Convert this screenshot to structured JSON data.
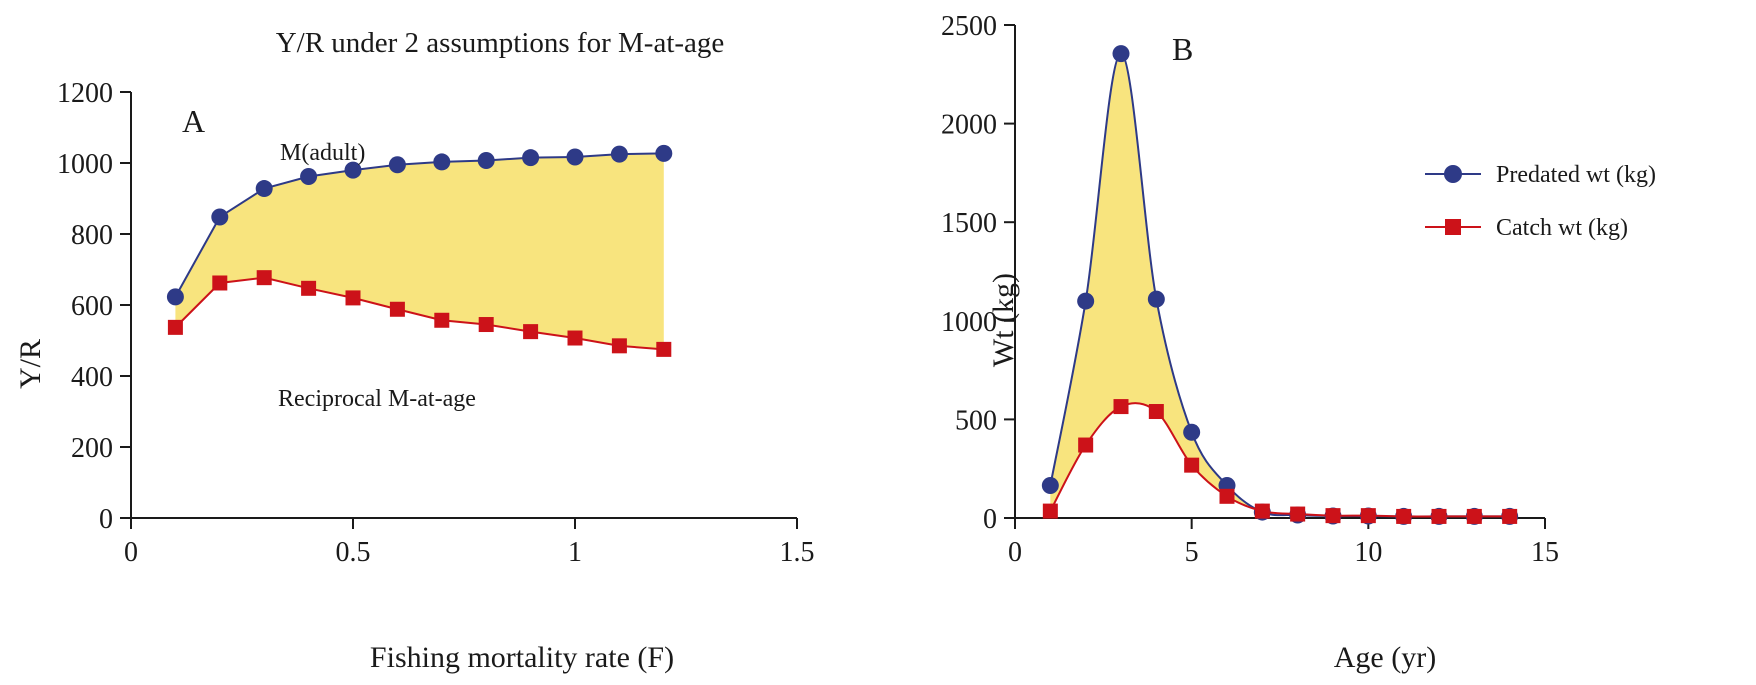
{
  "colors": {
    "fill": "#f8e47e",
    "predated": "#2e3a87",
    "catch": "#cc1219",
    "axis": "#1a1a1a"
  },
  "chart_data": [
    {
      "type": "line",
      "panel_label": "A",
      "title": "Y/R under 2 assumptions for M-at-age",
      "xlabel": "Fishing mortality rate (F)",
      "ylabel": "Y/R",
      "xlim": [
        0,
        1.5
      ],
      "ylim": [
        0,
        1200
      ],
      "xticks": [
        0,
        0.5,
        1,
        1.5
      ],
      "xtick_labels": [
        "0",
        "0.5",
        "1",
        "1.5"
      ],
      "yticks": [
        0,
        200,
        400,
        600,
        800,
        1000,
        1200
      ],
      "ytick_labels": [
        "0",
        "200",
        "400",
        "600",
        "800",
        "1000",
        "1200"
      ],
      "x": [
        0.1,
        0.2,
        0.3,
        0.4,
        0.5,
        0.6,
        0.7,
        0.8,
        0.9,
        1.0,
        1.1,
        1.2
      ],
      "series": [
        {
          "name": "M(adult)",
          "marker": "circle",
          "values": [
            623,
            848,
            928,
            962,
            980,
            995,
            1003,
            1007,
            1015,
            1017,
            1025,
            1027
          ]
        },
        {
          "name": "Reciprocal M-at-age",
          "marker": "square",
          "values": [
            537,
            662,
            677,
            647,
            620,
            588,
            557,
            545,
            525,
            507,
            485,
            475
          ]
        }
      ],
      "fill_between": true,
      "legend": "none",
      "grid": false
    },
    {
      "type": "line",
      "panel_label": "B",
      "title": "",
      "xlabel": "Age (yr)",
      "ylabel": "Wt (kg)",
      "xlim": [
        0,
        15
      ],
      "ylim": [
        0,
        2500
      ],
      "xticks": [
        0,
        5,
        10,
        15
      ],
      "xtick_labels": [
        "0",
        "5",
        "10",
        "15"
      ],
      "yticks": [
        0,
        500,
        1000,
        1500,
        2000,
        2500
      ],
      "ytick_labels": [
        "0",
        "500",
        "1000",
        "1500",
        "2000",
        "2500"
      ],
      "x": [
        1,
        2,
        3,
        4,
        5,
        6,
        7,
        8,
        9,
        10,
        11,
        12,
        13,
        14
      ],
      "series": [
        {
          "name": "Predated wt (kg)",
          "marker": "circle",
          "values": [
            165,
            1100,
            2355,
            1110,
            435,
            165,
            30,
            15,
            10,
            10,
            8,
            8,
            8,
            8
          ]
        },
        {
          "name": "Catch wt (kg)",
          "marker": "square",
          "values": [
            35,
            370,
            565,
            540,
            268,
            110,
            35,
            20,
            12,
            12,
            8,
            8,
            8,
            8
          ]
        }
      ],
      "fill_between": true,
      "legend": "upper-right",
      "grid": false
    }
  ]
}
